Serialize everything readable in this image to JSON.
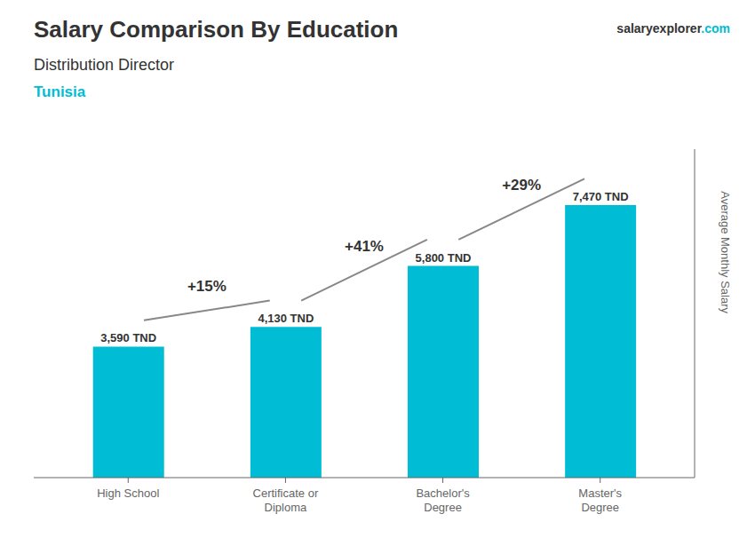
{
  "chart_data": {
    "type": "bar",
    "title": "Salary Comparison By Education",
    "subtitle": "Distribution Director",
    "annotations": [
      "Tunisia",
      "salaryexplorer",
      ".com"
    ],
    "ylabel": "Average Monthly Salary",
    "categories": [
      "High School",
      "Certificate or\nDiploma",
      "Bachelor's\nDegree",
      "Master's\nDegree"
    ],
    "values": [
      3590,
      4130,
      5800,
      7470
    ],
    "value_labels": [
      "3,590 TND",
      "4,130 TND",
      "5,800 TND",
      "7,470 TND"
    ],
    "data_labels": true,
    "change_labels": [
      "+15%",
      "+41%",
      "+29%"
    ],
    "color": "#00bcd4",
    "ylim": [
      0,
      9000
    ],
    "grid": false,
    "tick_labels": "x"
  }
}
